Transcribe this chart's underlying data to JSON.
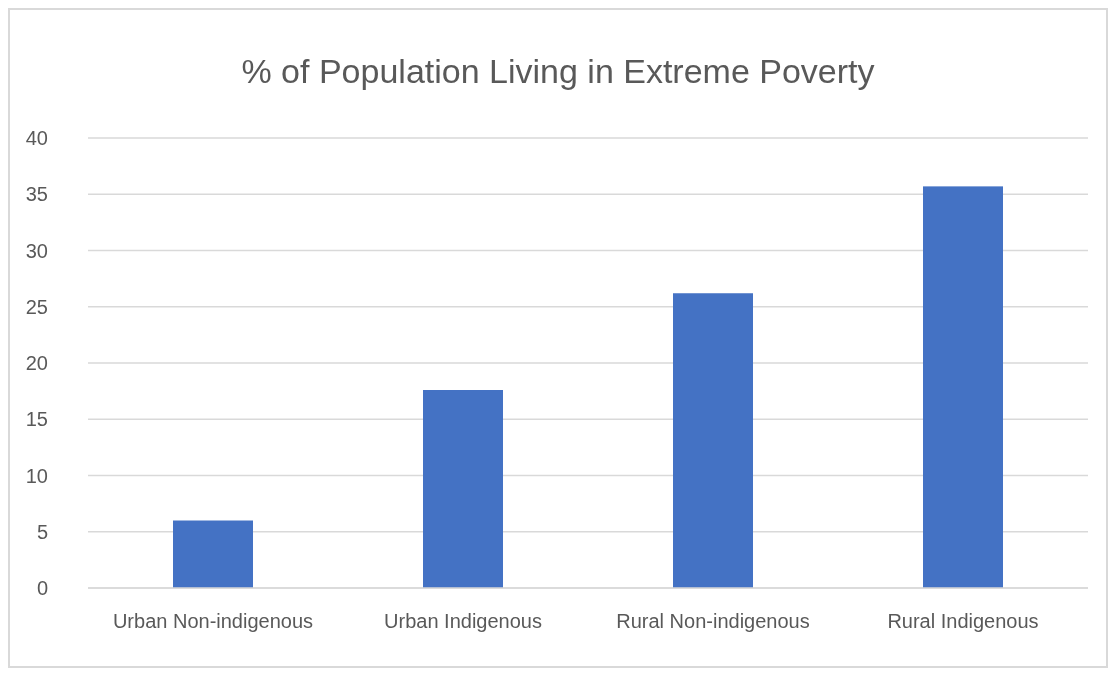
{
  "chart_data": {
    "type": "bar",
    "title": "% of Population Living in Extreme Poverty",
    "categories": [
      "Urban Non-indigenous",
      "Urban Indigenous",
      "Rural Non-indigenous",
      "Rural Indigenous"
    ],
    "values": [
      6.0,
      17.6,
      26.2,
      35.7
    ],
    "color": "#4472c4",
    "ylim": [
      0,
      40
    ],
    "yticks": [
      0,
      5,
      10,
      15,
      20,
      25,
      30,
      35,
      40
    ],
    "grid": "y"
  }
}
